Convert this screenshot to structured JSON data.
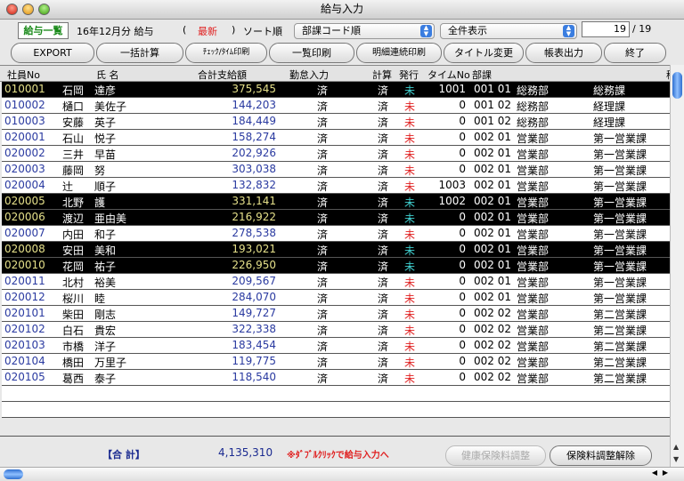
{
  "window": {
    "title": "給与入力"
  },
  "top": {
    "list_label": "給与一覧",
    "period": "16年12月分 給与",
    "paren_open": "(",
    "status": "最新",
    "paren_close": ")",
    "sort_label": "ソート順",
    "sort_value": "部課コード順",
    "filter_value": "全件表示",
    "record_current": "19",
    "record_total": "/ 19"
  },
  "buttons": [
    "EXPORT",
    "一括計算",
    "ﾁｪｯｸ/ﾀｲﾑ印刷",
    "一覧印刷",
    "明細連続印刷",
    "タイトル変更",
    "帳表出力",
    "終了"
  ],
  "columns": [
    "社員No",
    "氏 名",
    "合計支給額",
    "勤怠入力",
    "計算",
    "発行",
    "タイムNo",
    "部課",
    "稍"
  ],
  "rows": [
    {
      "id": "010001",
      "last": "石岡",
      "first": "達彦",
      "amount": "375,545",
      "att": "済",
      "calc": "済",
      "issued": "未",
      "time": "1001",
      "code": "001 01",
      "dept": "総務部",
      "section": "総務課",
      "selected": true
    },
    {
      "id": "010002",
      "last": "樋口",
      "first": "美佐子",
      "amount": "144,203",
      "att": "済",
      "calc": "済",
      "issued": "未",
      "time": "0",
      "code": "001 02",
      "dept": "総務部",
      "section": "経理課",
      "selected": false
    },
    {
      "id": "010003",
      "last": "安藤",
      "first": "英子",
      "amount": "184,449",
      "att": "済",
      "calc": "済",
      "issued": "未",
      "time": "0",
      "code": "001 02",
      "dept": "総務部",
      "section": "経理課",
      "selected": false
    },
    {
      "id": "020001",
      "last": "石山",
      "first": "悦子",
      "amount": "158,274",
      "att": "済",
      "calc": "済",
      "issued": "未",
      "time": "0",
      "code": "002 01",
      "dept": "営業部",
      "section": "第一営業課",
      "selected": false
    },
    {
      "id": "020002",
      "last": "三井",
      "first": "早苗",
      "amount": "202,926",
      "att": "済",
      "calc": "済",
      "issued": "未",
      "time": "0",
      "code": "002 01",
      "dept": "営業部",
      "section": "第一営業課",
      "selected": false
    },
    {
      "id": "020003",
      "last": "藤岡",
      "first": "努",
      "amount": "303,038",
      "att": "済",
      "calc": "済",
      "issued": "未",
      "time": "0",
      "code": "002 01",
      "dept": "営業部",
      "section": "第一営業課",
      "selected": false
    },
    {
      "id": "020004",
      "last": "辻",
      "first": "順子",
      "amount": "132,832",
      "att": "済",
      "calc": "済",
      "issued": "未",
      "time": "1003",
      "code": "002 01",
      "dept": "営業部",
      "section": "第一営業課",
      "selected": false
    },
    {
      "id": "020005",
      "last": "北野",
      "first": "護",
      "amount": "331,141",
      "att": "済",
      "calc": "済",
      "issued": "未",
      "time": "1002",
      "code": "002 01",
      "dept": "営業部",
      "section": "第一営業課",
      "selected": true
    },
    {
      "id": "020006",
      "last": "渡辺",
      "first": "亜由美",
      "amount": "216,922",
      "att": "済",
      "calc": "済",
      "issued": "未",
      "time": "0",
      "code": "002 01",
      "dept": "営業部",
      "section": "第一営業課",
      "selected": true
    },
    {
      "id": "020007",
      "last": "内田",
      "first": "和子",
      "amount": "278,538",
      "att": "済",
      "calc": "済",
      "issued": "未",
      "time": "0",
      "code": "002 01",
      "dept": "営業部",
      "section": "第一営業課",
      "selected": false
    },
    {
      "id": "020008",
      "last": "安田",
      "first": "美和",
      "amount": "193,021",
      "att": "済",
      "calc": "済",
      "issued": "未",
      "time": "0",
      "code": "002 01",
      "dept": "営業部",
      "section": "第一営業課",
      "selected": true
    },
    {
      "id": "020010",
      "last": "花岡",
      "first": "祐子",
      "amount": "226,950",
      "att": "済",
      "calc": "済",
      "issued": "未",
      "time": "0",
      "code": "002 01",
      "dept": "営業部",
      "section": "第一営業課",
      "selected": true
    },
    {
      "id": "020011",
      "last": "北村",
      "first": "裕美",
      "amount": "209,567",
      "att": "済",
      "calc": "済",
      "issued": "未",
      "time": "0",
      "code": "002 01",
      "dept": "営業部",
      "section": "第一営業課",
      "selected": false
    },
    {
      "id": "020012",
      "last": "桜川",
      "first": "睦",
      "amount": "284,070",
      "att": "済",
      "calc": "済",
      "issued": "未",
      "time": "0",
      "code": "002 01",
      "dept": "営業部",
      "section": "第一営業課",
      "selected": false
    },
    {
      "id": "020101",
      "last": "柴田",
      "first": "剛志",
      "amount": "149,727",
      "att": "済",
      "calc": "済",
      "issued": "未",
      "time": "0",
      "code": "002 02",
      "dept": "営業部",
      "section": "第二営業課",
      "selected": false
    },
    {
      "id": "020102",
      "last": "白石",
      "first": "貴宏",
      "amount": "322,338",
      "att": "済",
      "calc": "済",
      "issued": "未",
      "time": "0",
      "code": "002 02",
      "dept": "営業部",
      "section": "第二営業課",
      "selected": false
    },
    {
      "id": "020103",
      "last": "市橋",
      "first": "洋子",
      "amount": "183,454",
      "att": "済",
      "calc": "済",
      "issued": "未",
      "time": "0",
      "code": "002 02",
      "dept": "営業部",
      "section": "第二営業課",
      "selected": false
    },
    {
      "id": "020104",
      "last": "橋田",
      "first": "万里子",
      "amount": "119,775",
      "att": "済",
      "calc": "済",
      "issued": "未",
      "time": "0",
      "code": "002 02",
      "dept": "営業部",
      "section": "第二営業課",
      "selected": false
    },
    {
      "id": "020105",
      "last": "葛西",
      "first": "泰子",
      "amount": "118,540",
      "att": "済",
      "calc": "済",
      "issued": "未",
      "time": "0",
      "code": "002 02",
      "dept": "営業部",
      "section": "第二営業課",
      "selected": false
    }
  ],
  "footer": {
    "total_label": "【合 計】",
    "total_value": "4,135,310",
    "hint": "※ﾀﾞﾌﾞﾙｸﾘｯｸで給与入力へ",
    "btn_health": "健康保険料調整",
    "btn_release": "保険料調整解除"
  },
  "colors": {
    "selected_bg": "#000000",
    "id_blue": "#2a3aa0",
    "unissued_red": "#e02020",
    "unissued_selected": "#40d0d0",
    "status_red": "#e02020",
    "list_green": "#1a8a1a"
  }
}
